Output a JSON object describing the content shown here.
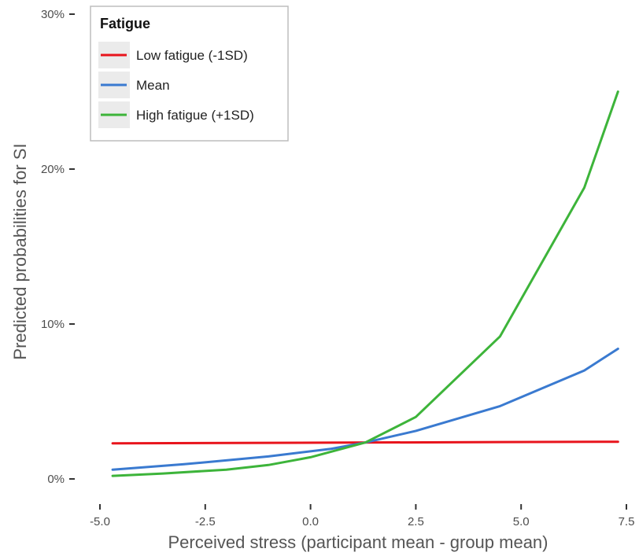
{
  "chart_data": {
    "type": "line",
    "xlabel": "Perceived stress (participant mean - group mean)",
    "ylabel": "Predicted probabilities for SI",
    "xlim": [
      -5.0,
      7.5
    ],
    "ylim": [
      0,
      30
    ],
    "x_ticks": [
      "-5.0",
      "-2.5",
      "0.0",
      "2.5",
      "5.0",
      "7.5"
    ],
    "y_ticks": [
      "0%",
      "10%",
      "20%",
      "30%"
    ],
    "grid": false,
    "legend": {
      "title": "Fatigue",
      "placement": "top-left",
      "entries": [
        "Low fatigue (-1SD)",
        "Mean",
        "High fatigue (+1SD)"
      ]
    },
    "series": [
      {
        "name": "Low fatigue (-1SD)",
        "color": "#e8141c",
        "x": [
          -4.7,
          7.3
        ],
        "y": [
          2.3,
          2.4
        ]
      },
      {
        "name": "Mean",
        "color": "#3a7ad0",
        "x": [
          -4.7,
          -3.0,
          -1.0,
          0.5,
          1.3,
          2.5,
          4.5,
          6.5,
          7.3
        ],
        "y": [
          0.6,
          0.95,
          1.45,
          1.95,
          2.35,
          3.1,
          4.7,
          7.0,
          8.4
        ]
      },
      {
        "name": "High fatigue (+1SD)",
        "color": "#3db43a",
        "x": [
          -4.7,
          -3.5,
          -2.0,
          -1.0,
          0.0,
          1.3,
          2.5,
          4.5,
          6.5,
          7.3
        ],
        "y": [
          0.2,
          0.35,
          0.6,
          0.9,
          1.4,
          2.35,
          4.0,
          9.2,
          18.8,
          25.0
        ]
      }
    ]
  }
}
